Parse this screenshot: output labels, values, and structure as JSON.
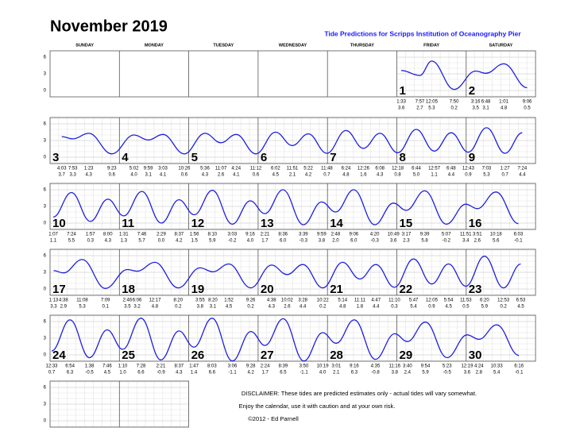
{
  "title": "November 2019",
  "subtitle": "Tide Predictions for Scripps Institution of Oceanography Pier",
  "weekdays": [
    "SUNDAY",
    "MONDAY",
    "TUESDAY",
    "WEDNESDAY",
    "THURSDAY",
    "FRIDAY",
    "SATURDAY"
  ],
  "yticks": [
    6,
    3,
    0
  ],
  "first_weekday": 5,
  "days": [
    {
      "day": 1,
      "tides": [
        [
          "1:33",
          "3.6"
        ],
        [
          "7:57",
          "2.7"
        ],
        [
          "12:05",
          "5.3"
        ],
        [
          "7:50",
          "0.2"
        ]
      ]
    },
    {
      "day": 2,
      "tides": [
        [
          "3:16",
          "3.5"
        ],
        [
          "6:48",
          "3.1"
        ],
        [
          "1:01",
          "4.8"
        ],
        [
          "9:06",
          "0.5"
        ]
      ]
    },
    {
      "day": 3,
      "tides": [
        [
          "4:03",
          "3.7"
        ],
        [
          "7:53",
          "3.3"
        ],
        [
          "1:23",
          "4.3"
        ],
        [
          "9:23",
          "0.6"
        ]
      ]
    },
    {
      "day": 4,
      "tides": [
        [
          "5:02",
          "4.0"
        ],
        [
          "9:59",
          "3.1"
        ],
        [
          "3:03",
          "4.1"
        ],
        [
          "10:26",
          "0.6"
        ]
      ]
    },
    {
      "day": 5,
      "tides": [
        [
          "5:36",
          "4.3"
        ],
        [
          "11:07",
          "2.6"
        ],
        [
          "4:24",
          "4.1"
        ],
        [
          "11:12",
          "0.6"
        ]
      ]
    },
    {
      "day": 6,
      "tides": [
        [
          "6:02",
          "4.5"
        ],
        [
          "11:51",
          "2.1"
        ],
        [
          "5:22",
          "4.2"
        ],
        [
          "11:48",
          "0.7"
        ]
      ]
    },
    {
      "day": 7,
      "tides": [
        [
          "6:24",
          "4.8"
        ],
        [
          "12:26",
          "1.6"
        ],
        [
          "6:08",
          "4.3"
        ]
      ]
    },
    {
      "day": 8,
      "tides": [
        [
          "12:18",
          "0.8"
        ],
        [
          "6:44",
          "5.0"
        ],
        [
          "12:57",
          "1.1"
        ],
        [
          "6:48",
          "4.4"
        ]
      ]
    },
    {
      "day": 9,
      "tides": [
        [
          "12:43",
          "0.9"
        ],
        [
          "7:03",
          "5.3"
        ],
        [
          "1:27",
          "0.7"
        ],
        [
          "7:24",
          "4.4"
        ]
      ]
    },
    {
      "day": 10,
      "tides": [
        [
          "1:07",
          "1.1"
        ],
        [
          "7:24",
          "5.5"
        ],
        [
          "1:57",
          "0.3"
        ],
        [
          "8:00",
          "4.3"
        ]
      ]
    },
    {
      "day": 11,
      "tides": [
        [
          "1:31",
          "1.3"
        ],
        [
          "7:46",
          "5.7"
        ],
        [
          "2:29",
          "0.0"
        ],
        [
          "8:37",
          "4.2"
        ]
      ]
    },
    {
      "day": 12,
      "tides": [
        [
          "1:56",
          "1.5"
        ],
        [
          "8:10",
          "5.9"
        ],
        [
          "3:03",
          "-0.2"
        ],
        [
          "9:16",
          "4.0"
        ]
      ]
    },
    {
      "day": 13,
      "tides": [
        [
          "2:21",
          "1.7"
        ],
        [
          "8:36",
          "6.0"
        ],
        [
          "3:39",
          "-0.3"
        ],
        [
          "9:59",
          "3.8"
        ]
      ]
    },
    {
      "day": 14,
      "tides": [
        [
          "2:48",
          "2.0"
        ],
        [
          "9:06",
          "6.0"
        ],
        [
          "4:20",
          "-0.3"
        ],
        [
          "10:49",
          "3.6"
        ]
      ]
    },
    {
      "day": 15,
      "tides": [
        [
          "3:17",
          "2.3"
        ],
        [
          "9:39",
          "5.8"
        ],
        [
          "5:07",
          "-0.2"
        ],
        [
          "11:51",
          "3.4"
        ]
      ]
    },
    {
      "day": 16,
      "tides": [
        [
          "3:51",
          "2.6"
        ],
        [
          "10:18",
          "5.6"
        ],
        [
          "6:03",
          "-0.1"
        ]
      ]
    },
    {
      "day": 17,
      "tides": [
        [
          "1:13",
          "3.3"
        ],
        [
          "4:38",
          "2.9"
        ],
        [
          "11:08",
          "5.3"
        ],
        [
          "7:09",
          "0.1"
        ]
      ]
    },
    {
      "day": 18,
      "tides": [
        [
          "2:46",
          "3.5"
        ],
        [
          "6:06",
          "3.2"
        ],
        [
          "12:17",
          "4.8"
        ],
        [
          "8:20",
          "0.2"
        ]
      ]
    },
    {
      "day": 19,
      "tides": [
        [
          "3:55",
          "3.8"
        ],
        [
          "8:20",
          "3.1"
        ],
        [
          "1:52",
          "4.5"
        ],
        [
          "9:26",
          "0.2"
        ]
      ]
    },
    {
      "day": 20,
      "tides": [
        [
          "4:38",
          "4.3"
        ],
        [
          "10:02",
          "2.6"
        ],
        [
          "3:28",
          "4.4"
        ],
        [
          "10:22",
          "0.2"
        ]
      ]
    },
    {
      "day": 21,
      "tides": [
        [
          "5:14",
          "4.8"
        ],
        [
          "11:11",
          "1.8"
        ],
        [
          "4:47",
          "4.4"
        ],
        [
          "11:10",
          "0.3"
        ]
      ]
    },
    {
      "day": 22,
      "tides": [
        [
          "5:47",
          "5.4"
        ],
        [
          "12:05",
          "0.9"
        ],
        [
          "5:54",
          "4.5"
        ],
        [
          "11:53",
          "0.5"
        ]
      ]
    },
    {
      "day": 23,
      "tides": [
        [
          "6:20",
          "5.9"
        ],
        [
          "12:53",
          "0.2"
        ],
        [
          "6:53",
          "4.5"
        ]
      ]
    },
    {
      "day": 24,
      "tides": [
        [
          "12:33",
          "0.7"
        ],
        [
          "6:54",
          "6.3"
        ],
        [
          "1:38",
          "-0.5"
        ],
        [
          "7:46",
          "4.5"
        ]
      ]
    },
    {
      "day": 25,
      "tides": [
        [
          "1:10",
          "1.0"
        ],
        [
          "7:28",
          "6.6"
        ],
        [
          "2:21",
          "-0.9"
        ],
        [
          "8:37",
          "4.3"
        ]
      ]
    },
    {
      "day": 26,
      "tides": [
        [
          "1:47",
          "1.4"
        ],
        [
          "8:03",
          "6.6"
        ],
        [
          "3:06",
          "-1.1"
        ],
        [
          "9:28",
          "4.2"
        ]
      ]
    },
    {
      "day": 27,
      "tides": [
        [
          "2:24",
          "1.7"
        ],
        [
          "8:39",
          "6.5"
        ],
        [
          "3:50",
          "-1.1"
        ],
        [
          "10:19",
          "4.0"
        ]
      ]
    },
    {
      "day": 28,
      "tides": [
        [
          "3:01",
          "2.1"
        ],
        [
          "9:16",
          "6.3"
        ],
        [
          "4:35",
          "-0.8"
        ],
        [
          "11:16",
          "3.8"
        ]
      ]
    },
    {
      "day": 29,
      "tides": [
        [
          "3:40",
          "2.4"
        ],
        [
          "9:54",
          "5.9"
        ],
        [
          "5:23",
          "-0.5"
        ]
      ]
    },
    {
      "day": 30,
      "tides": [
        [
          "12:19",
          "3.6"
        ],
        [
          "4:24",
          "2.8"
        ],
        [
          "10:33",
          "5.4"
        ],
        [
          "6:16",
          "-0.1"
        ]
      ]
    }
  ],
  "disclaimer": [
    "DISCLAIMER: These tides are predicted estimates only - actual tides will vary somewhat.",
    "Enjoy the calendar, use it with caution and at your own risk.",
    "©2012 - Ed Parnell"
  ]
}
